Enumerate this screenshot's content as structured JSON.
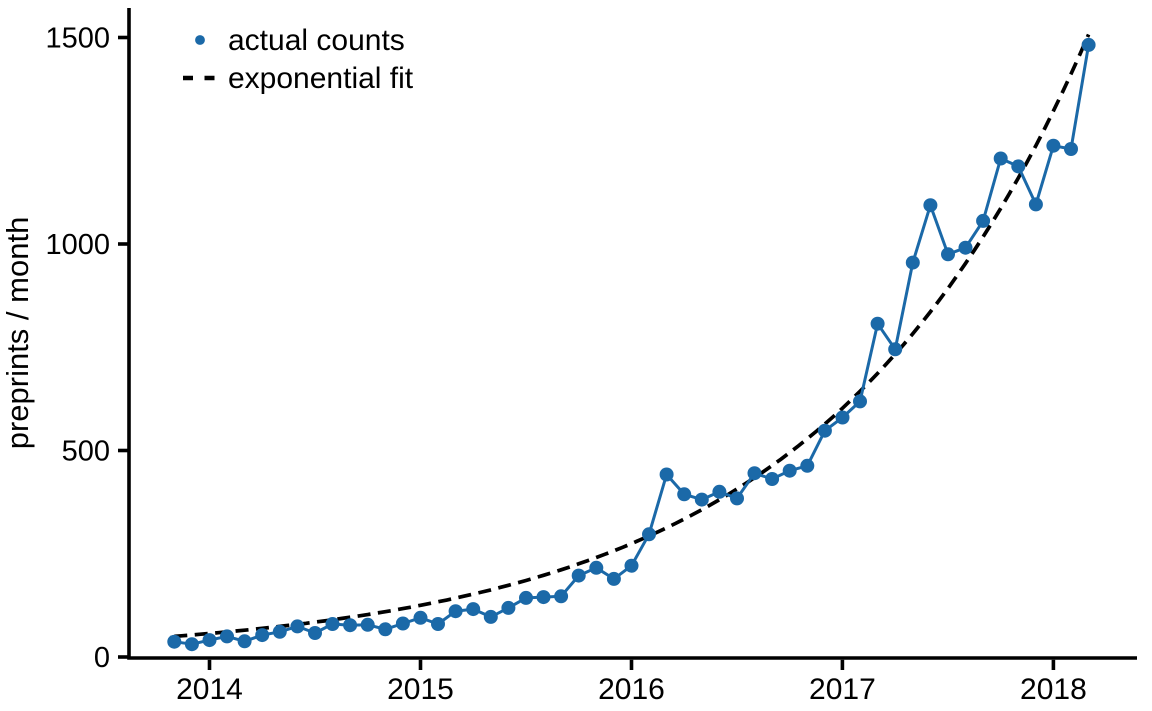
{
  "chart_data": {
    "type": "line",
    "title": "",
    "xlabel": "",
    "ylabel": "preprints / month",
    "x_tick_labels": [
      "2014",
      "2015",
      "2016",
      "2017",
      "2018"
    ],
    "y_tick_labels": [
      "0",
      "500",
      "1000",
      "1500"
    ],
    "y_tick_values": [
      0,
      500,
      1000,
      1500
    ],
    "ylim": [
      0,
      1570
    ],
    "x_range_months": [
      "2013-11",
      "2018-03"
    ],
    "grid": "off",
    "legend_position": "upper-left-inside",
    "legend": [
      {
        "label": "actual counts",
        "marker": "dot",
        "color": "#1b69a8"
      },
      {
        "label": "exponential fit",
        "marker": "dashed-line",
        "color": "#000000"
      }
    ],
    "series": [
      {
        "name": "actual counts",
        "type": "scatter-line",
        "color": "#1b69a8",
        "months": [
          "2013-11",
          "2013-12",
          "2014-01",
          "2014-02",
          "2014-03",
          "2014-04",
          "2014-05",
          "2014-06",
          "2014-07",
          "2014-08",
          "2014-09",
          "2014-10",
          "2014-11",
          "2014-12",
          "2015-01",
          "2015-02",
          "2015-03",
          "2015-04",
          "2015-05",
          "2015-06",
          "2015-07",
          "2015-08",
          "2015-09",
          "2015-10",
          "2015-11",
          "2015-12",
          "2016-01",
          "2016-02",
          "2016-03",
          "2016-04",
          "2016-05",
          "2016-06",
          "2016-07",
          "2016-08",
          "2016-09",
          "2016-10",
          "2016-11",
          "2016-12",
          "2017-01",
          "2017-02",
          "2017-03",
          "2017-04",
          "2017-05",
          "2017-06",
          "2017-07",
          "2017-08",
          "2017-09",
          "2017-10",
          "2017-11",
          "2017-12",
          "2018-01",
          "2018-02",
          "2018-03"
        ],
        "values": [
          37,
          31,
          41,
          50,
          38,
          53,
          61,
          74,
          58,
          80,
          77,
          78,
          67,
          81,
          95,
          80,
          111,
          116,
          97,
          119,
          143,
          145,
          147,
          197,
          216,
          189,
          221,
          297,
          442,
          394,
          381,
          400,
          384,
          445,
          431,
          451,
          463,
          548,
          580,
          619,
          807,
          745,
          955,
          1094,
          975,
          991,
          1056,
          1207,
          1188,
          1096,
          1238,
          1230,
          1482
        ]
      },
      {
        "name": "exponential fit",
        "type": "exponential-curve",
        "color": "#000000",
        "fit": {
          "value_at_first_month": 50,
          "monthly_growth_rate": 0.0655
        }
      }
    ]
  }
}
